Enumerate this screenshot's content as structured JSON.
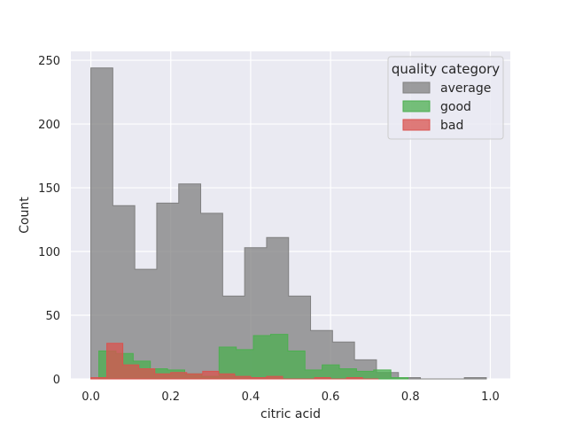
{
  "chart_data": {
    "type": "histogram",
    "title": "",
    "xlabel": "citric acid",
    "ylabel": "Count",
    "xlim": [
      -0.05,
      1.05
    ],
    "ylim": [
      0,
      257
    ],
    "xticks": [
      0.0,
      0.2,
      0.4,
      0.6,
      0.8,
      1.0
    ],
    "xtick_labels": [
      "0.0",
      "0.2",
      "0.4",
      "0.6",
      "0.8",
      "1.0"
    ],
    "yticks": [
      0,
      50,
      100,
      150,
      200,
      250
    ],
    "ytick_labels": [
      "0",
      "50",
      "100",
      "150",
      "200",
      "250"
    ],
    "grid": true,
    "element": "step",
    "legend": {
      "title": "quality category",
      "position": "top-right",
      "entries": [
        "average",
        "good",
        "bad"
      ]
    },
    "colors": {
      "average": "#808080",
      "good": "#4caf50",
      "bad": "#d9534f",
      "plot_background": "#eaeaf2",
      "grid": "#ffffff"
    },
    "series": [
      {
        "name": "average",
        "bins": [
          0.0,
          0.055,
          0.11,
          0.165,
          0.22,
          0.275,
          0.33,
          0.385,
          0.44,
          0.495,
          0.55,
          0.605,
          0.66,
          0.715,
          0.77,
          0.825,
          0.88,
          0.935,
          0.99
        ],
        "counts": [
          244,
          136,
          86,
          138,
          153,
          130,
          65,
          103,
          111,
          65,
          38,
          29,
          15,
          5,
          1,
          0,
          0,
          1
        ]
      },
      {
        "name": "good",
        "bins": [
          0.02,
          0.063,
          0.106,
          0.149,
          0.192,
          0.235,
          0.278,
          0.321,
          0.364,
          0.407,
          0.45,
          0.493,
          0.536,
          0.579,
          0.622,
          0.665,
          0.708,
          0.751,
          0.794
        ],
        "counts": [
          22,
          20,
          14,
          8,
          7,
          4,
          2,
          25,
          23,
          34,
          35,
          22,
          7,
          11,
          8,
          6,
          7,
          1
        ]
      },
      {
        "name": "bad",
        "bins": [
          0.0,
          0.04,
          0.08,
          0.12,
          0.16,
          0.2,
          0.24,
          0.28,
          0.32,
          0.36,
          0.4,
          0.44,
          0.48,
          0.52,
          0.56,
          0.6,
          0.64,
          0.68,
          0.72
        ],
        "counts": [
          1,
          28,
          11,
          8,
          4,
          5,
          4,
          6,
          4,
          2,
          1,
          2,
          0,
          0,
          1,
          0,
          1,
          0
        ]
      }
    ]
  }
}
